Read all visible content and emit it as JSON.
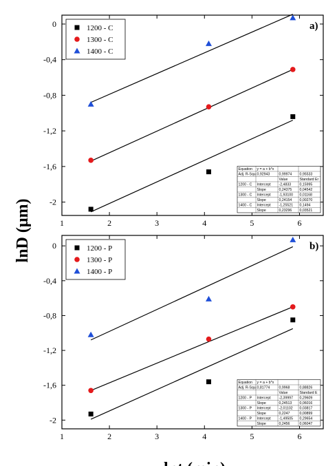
{
  "figure": {
    "ylabel": "lnD (μm)",
    "xlabel": "lnt (min)"
  },
  "chart_data": [
    {
      "type": "scatter",
      "panel_label": "a)",
      "xlim": [
        1,
        6.5
      ],
      "ylim": [
        -2.15,
        0.1
      ],
      "xticks": [
        1,
        2,
        3,
        4,
        5,
        6
      ],
      "yticks": [
        0,
        -0.4,
        -0.8,
        -1.2,
        -1.6,
        -2
      ],
      "ytick_labels": [
        "0",
        "-0,4",
        "-0,8",
        "-1,2",
        "-1,6",
        "-2"
      ],
      "legend_position": "top-left",
      "grid": false,
      "series": [
        {
          "name": "1200 - C",
          "marker": "square",
          "color": "#000000",
          "x": [
            1.61,
            4.09,
            5.86
          ],
          "y": [
            -2.08,
            -1.66,
            -1.04
          ],
          "fit": {
            "x": [
              1.61,
              5.86
            ],
            "y": [
              -2.11,
              -1.08
            ]
          }
        },
        {
          "name": "1300 - C",
          "marker": "circle",
          "color": "#e41a1c",
          "x": [
            1.61,
            4.09,
            5.86
          ],
          "y": [
            -1.53,
            -0.93,
            -0.51
          ],
          "fit": {
            "x": [
              1.61,
              5.86
            ],
            "y": [
              -1.54,
              -0.51
            ]
          }
        },
        {
          "name": "1400 - C",
          "marker": "triangle",
          "color": "#1f4fd8",
          "x": [
            1.61,
            4.09,
            5.86
          ],
          "y": [
            -0.9,
            -0.22,
            0.07
          ],
          "fit": {
            "x": [
              1.61,
              5.86
            ],
            "y": [
              -0.88,
              0.11
            ]
          }
        }
      ],
      "table": {
        "rows": [
          [
            "Equation",
            "y = a + b*x",
            "",
            ""
          ],
          [
            "Adj. R-Squ.",
            "0,92943",
            "0,99974",
            "0,95533"
          ],
          [
            "",
            "",
            "Value",
            "Standard Er"
          ],
          [
            "1200 - C",
            "Intercept",
            "-2,4833",
            "0,15995"
          ],
          [
            "",
            "Slope",
            "0,24375",
            "0,04542"
          ],
          [
            "1300 - C",
            "Intercept",
            "-1,93100",
            "0,01168"
          ],
          [
            "",
            "Slope",
            "0,24154",
            "0,00270"
          ],
          [
            "1400 - C",
            "Intercept",
            "-1,25521",
            "0,1494"
          ],
          [
            "",
            "Slope",
            "0,23296",
            "0,03521"
          ]
        ]
      }
    },
    {
      "type": "scatter",
      "panel_label": "b)",
      "xlim": [
        1,
        6.5
      ],
      "ylim": [
        -2.1,
        0.12
      ],
      "xticks": [
        1,
        2,
        3,
        4,
        5,
        6
      ],
      "yticks": [
        0,
        -0.4,
        -0.8,
        -1.2,
        -1.6,
        -2
      ],
      "ytick_labels": [
        "0",
        "-0,4",
        "-0,8",
        "-1,2",
        "-1,6",
        "-2"
      ],
      "legend_position": "top-left",
      "grid": false,
      "series": [
        {
          "name": "1200 - P",
          "marker": "square",
          "color": "#000000",
          "x": [
            1.61,
            4.09,
            5.86
          ],
          "y": [
            -1.93,
            -1.56,
            -0.85
          ],
          "fit": {
            "x": [
              1.61,
              5.86
            ],
            "y": [
              -1.99,
              -0.95
            ]
          }
        },
        {
          "name": "1300 - P",
          "marker": "circle",
          "color": "#e41a1c",
          "x": [
            1.61,
            4.09,
            5.86
          ],
          "y": [
            -1.66,
            -1.07,
            -0.7
          ],
          "fit": {
            "x": [
              1.61,
              5.86
            ],
            "y": [
              -1.66,
              -0.7
            ]
          }
        },
        {
          "name": "1400 - P",
          "marker": "triangle",
          "color": "#1f4fd8",
          "x": [
            1.61,
            4.09,
            5.86
          ],
          "y": [
            -1.02,
            -0.61,
            0.07
          ],
          "fit": {
            "x": [
              1.61,
              5.86
            ],
            "y": [
              -1.08,
              -0.01
            ]
          }
        }
      ],
      "table": {
        "rows": [
          [
            "Equation",
            "y = a + b*x",
            "",
            ""
          ],
          [
            "Adj. R-Squ.",
            "0,81774",
            "0,9968",
            "0,88826"
          ],
          [
            "",
            "",
            "Value",
            "Standard E"
          ],
          [
            "1200 - P",
            "Intercept",
            "-2,39997",
            "0,29609"
          ],
          [
            "",
            "Slope",
            "0,24513",
            "0,06016"
          ],
          [
            "1300 - P",
            "Intercept",
            "-2,01102",
            "0,03817"
          ],
          [
            "",
            "Slope",
            "0,2247",
            "0,00899"
          ],
          [
            "1400 - P",
            "Intercept",
            "-1,49505",
            "0,29654"
          ],
          [
            "",
            "Slope",
            "0,2456",
            "0,06047"
          ]
        ]
      }
    }
  ]
}
